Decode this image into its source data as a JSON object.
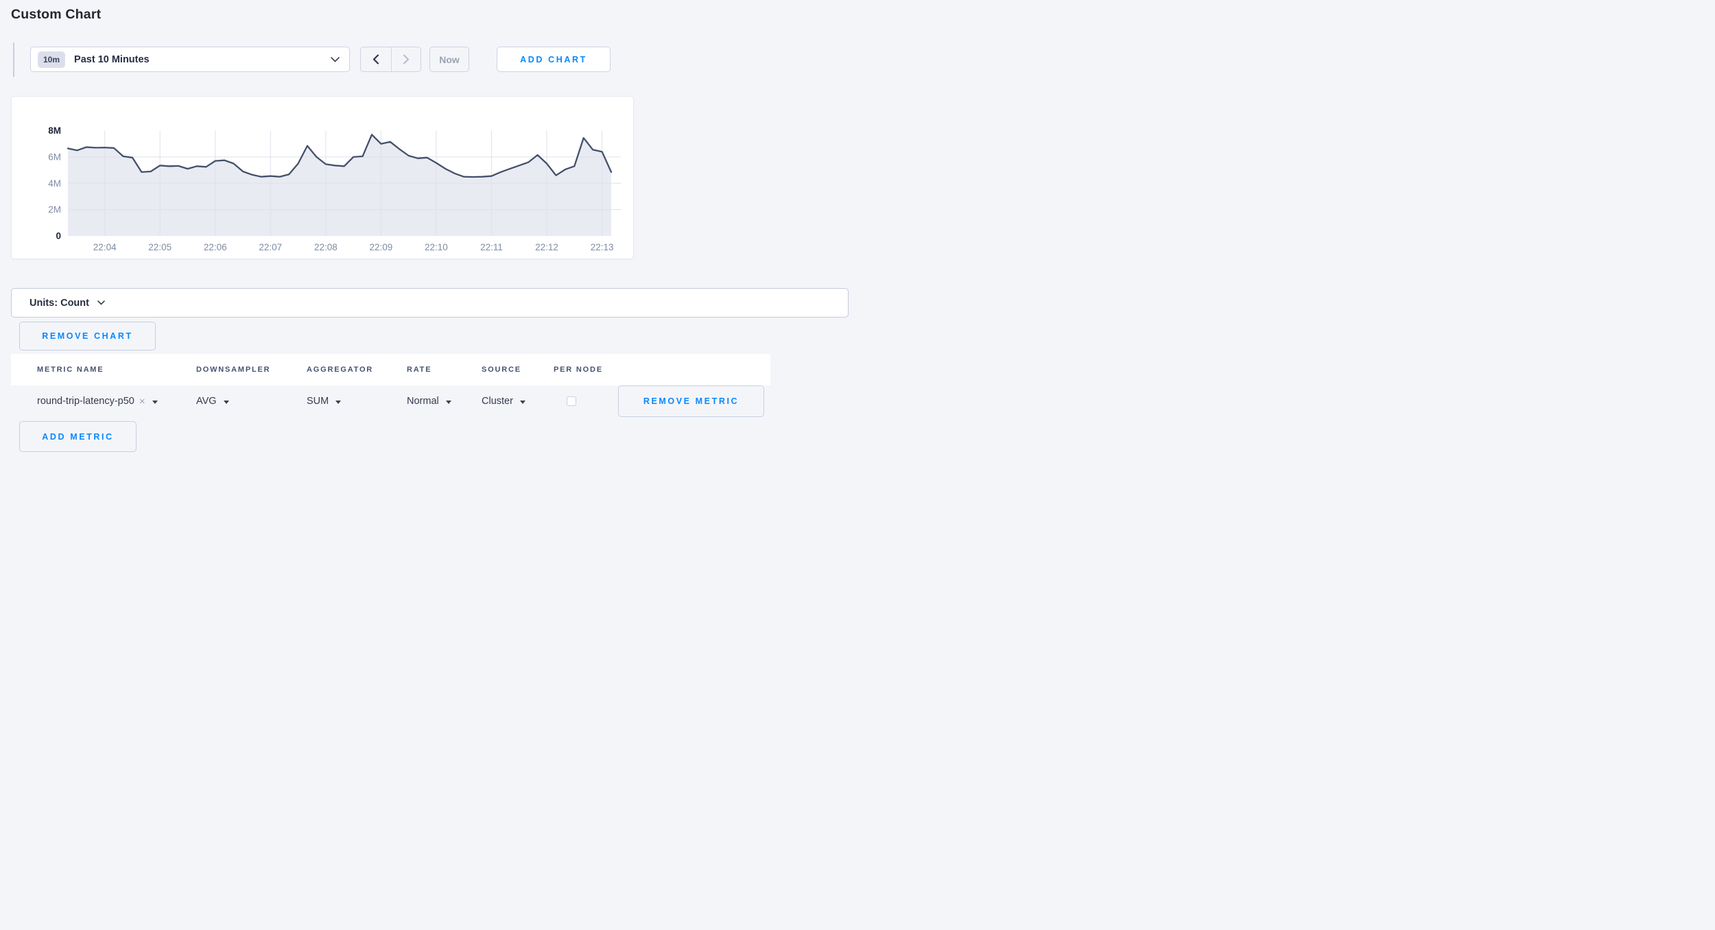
{
  "page": {
    "title": "Custom Chart",
    "background_color": "#f4f5f9",
    "accent_blue": "#0788ff"
  },
  "toolbar": {
    "range_badge": "10m",
    "range_label": "Past 10 Minutes",
    "now_label": "Now",
    "add_chart_label": "ADD CHART",
    "prev_arrow_enabled": true,
    "next_arrow_enabled": false
  },
  "units_bar": {
    "label": "Units: Count"
  },
  "remove_chart_label": "REMOVE CHART",
  "chart_data": {
    "type": "area",
    "title": "",
    "xlabel": "",
    "ylabel": "",
    "ylim": [
      0,
      8000000
    ],
    "grid": true,
    "x_start": "22:03:20",
    "x_interval_seconds": 10,
    "x_tick_labels": [
      "22:04",
      "22:05",
      "22:06",
      "22:07",
      "22:08",
      "22:09",
      "22:10",
      "22:11",
      "22:12",
      "22:13"
    ],
    "x_tick_offsets_seconds": [
      40,
      100,
      160,
      220,
      280,
      340,
      400,
      460,
      520,
      580
    ],
    "y_tick_labels": [
      "8M",
      "6M",
      "4M",
      "2M",
      "0"
    ],
    "y_tick_values": [
      8000000,
      6000000,
      4000000,
      2000000,
      0
    ],
    "line_color": "#44506a",
    "fill_color": "#e9ebf2",
    "grid_color": "#dde1ec",
    "series": [
      {
        "name": "round-trip-latency-p50",
        "values_millions": [
          6.65,
          6.5,
          6.75,
          6.7,
          6.72,
          6.68,
          6.05,
          5.95,
          4.85,
          4.9,
          5.35,
          5.3,
          5.32,
          5.1,
          5.3,
          5.25,
          5.7,
          5.75,
          5.5,
          4.9,
          4.65,
          4.5,
          4.55,
          4.5,
          4.68,
          5.5,
          6.85,
          6.0,
          5.45,
          5.35,
          5.3,
          6.0,
          6.05,
          7.7,
          7.0,
          7.15,
          6.6,
          6.1,
          5.9,
          5.95,
          5.55,
          5.1,
          4.75,
          4.5,
          4.48,
          4.5,
          4.55,
          4.85,
          5.1,
          5.35,
          5.6,
          6.15,
          5.5,
          4.6,
          5.05,
          5.3,
          7.45,
          6.55,
          6.4,
          4.85
        ]
      }
    ]
  },
  "metrics_table": {
    "headers": [
      "METRIC NAME",
      "DOWNSAMPLER",
      "AGGREGATOR",
      "RATE",
      "SOURCE",
      "PER NODE"
    ],
    "rows": [
      {
        "metric_name": "round-trip-latency-p50",
        "clear_glyph": "×",
        "downsampler": "AVG",
        "aggregator": "SUM",
        "rate": "Normal",
        "source": "Cluster",
        "per_node_checked": false,
        "remove_label": "REMOVE METRIC"
      }
    ],
    "add_metric_label": "ADD METRIC"
  }
}
